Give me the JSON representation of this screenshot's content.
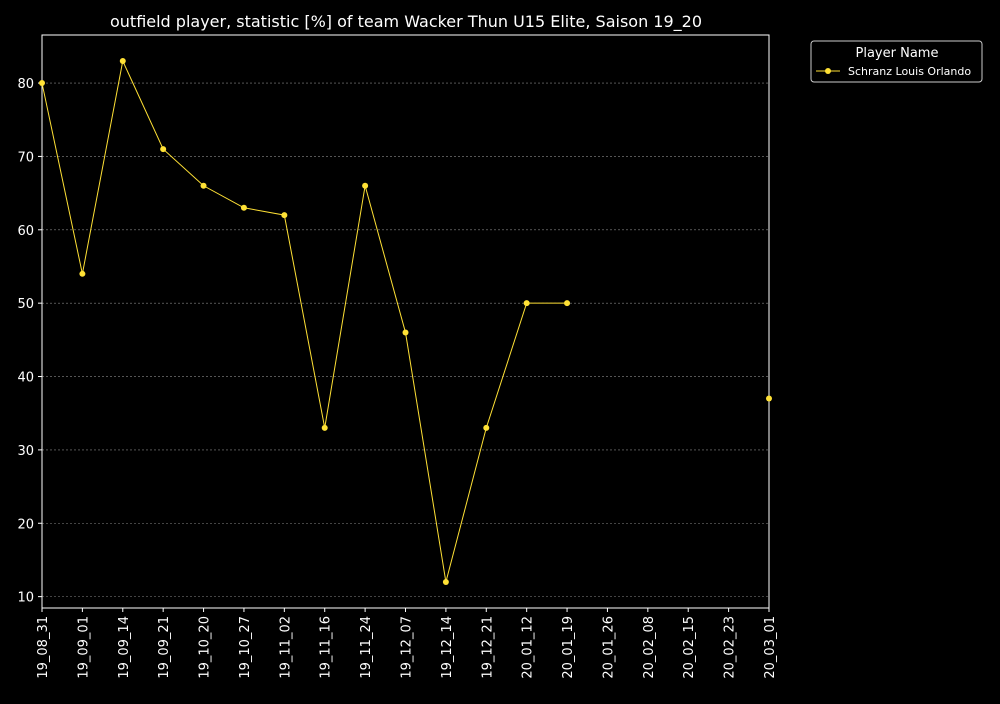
{
  "chart_data": {
    "type": "line",
    "title": "outfield player, statistic [%] of team Wacker Thun U15 Elite, Saison 19_20",
    "xlabel": "",
    "ylabel": "",
    "categories": [
      "19_08_31",
      "19_09_01",
      "19_09_14",
      "19_09_21",
      "19_10_20",
      "19_10_27",
      "19_11_02",
      "19_11_16",
      "19_11_24",
      "19_12_07",
      "19_12_14",
      "19_12_21",
      "20_01_12",
      "20_01_19",
      "20_01_26",
      "20_02_08",
      "20_02_15",
      "20_02_23",
      "20_03_01"
    ],
    "series": [
      {
        "name": "Schranz Louis Orlando",
        "color": "#ffe135",
        "values": [
          80,
          54,
          83,
          71,
          66,
          63,
          62,
          33,
          66,
          46,
          12,
          33,
          50,
          50,
          null,
          null,
          null,
          null,
          37
        ]
      }
    ],
    "yticks": [
      10,
      20,
      30,
      40,
      50,
      60,
      70,
      80
    ],
    "ylim": [
      8.45,
      86.55
    ],
    "grid": true,
    "legend": {
      "title": "Player Name",
      "placement": "outside-top-right"
    },
    "colors": {
      "background": "#000000",
      "text": "#ffffff",
      "grid": "#888888"
    }
  }
}
